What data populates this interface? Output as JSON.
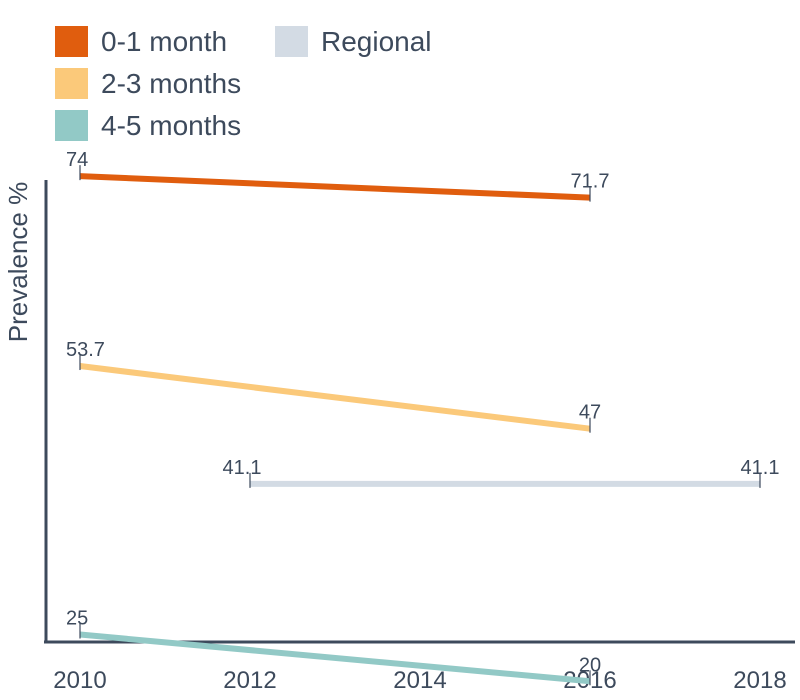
{
  "chart_data": {
    "type": "line",
    "title": "",
    "xlabel": "",
    "ylabel": "Prevalence %",
    "x_ticks": [
      "2010",
      "2012",
      "2014",
      "2016",
      "2018"
    ],
    "xlim": [
      2010,
      2018
    ],
    "ylim": [
      18,
      80
    ],
    "grid": false,
    "legend_position": "top-left",
    "series": [
      {
        "name": "0-1 month",
        "color": "#e05d0e",
        "x": [
          2010,
          2016
        ],
        "y": [
          74,
          71.7
        ],
        "labels": [
          "74",
          "71.7"
        ]
      },
      {
        "name": "2-3 months",
        "color": "#fbc97a",
        "x": [
          2010,
          2016
        ],
        "y": [
          53.7,
          47
        ],
        "labels": [
          "53.7",
          "47"
        ]
      },
      {
        "name": "4-5 months",
        "color": "#92c9c6",
        "x": [
          2010,
          2016
        ],
        "y": [
          25,
          20
        ],
        "labels": [
          "25",
          "20"
        ]
      },
      {
        "name": "Regional",
        "color": "#d3dbe4",
        "x": [
          2012,
          2018
        ],
        "y": [
          41.1,
          41.1
        ],
        "labels": [
          "41.1",
          "41.1"
        ]
      }
    ]
  }
}
